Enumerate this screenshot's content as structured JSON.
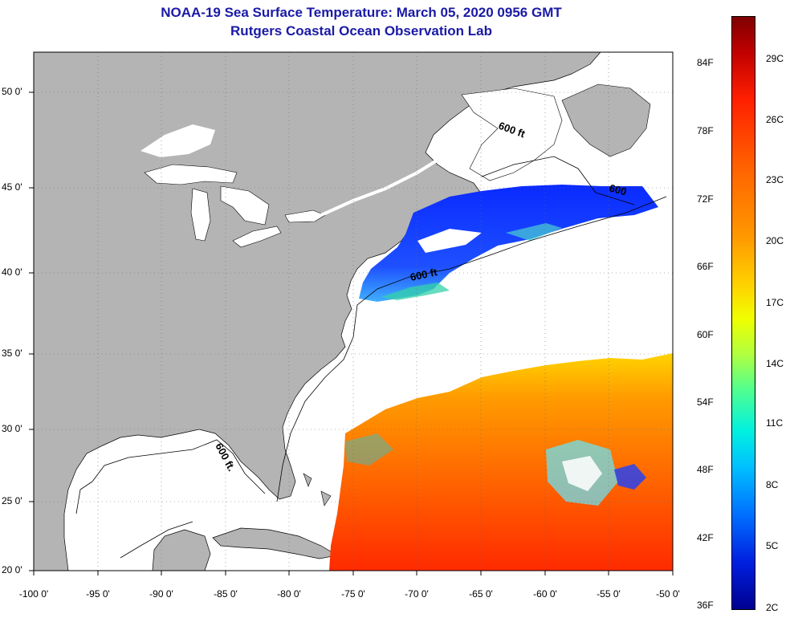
{
  "title": {
    "line1": "NOAA-19 Sea Surface Temperature:  March 05, 2020 0956 GMT",
    "line2": "Rutgers Coastal Ocean Observation Lab"
  },
  "map": {
    "lat_labels": [
      "50 0'",
      "45 0'",
      "40 0'",
      "35 0'",
      "30 0'",
      "25 0'",
      "20 0'"
    ],
    "lon_labels": [
      "-100 0'",
      "-95 0'",
      "-90 0'",
      "-85 0'",
      "-80 0'",
      "-75 0'",
      "-70 0'",
      "-65 0'",
      "-60 0'",
      "-55 0'",
      "-50 0'"
    ],
    "isobath_labels": [
      "600 ft",
      "600",
      "600 ft",
      "600 ft."
    ],
    "colors": {
      "land": "#b4b4b4",
      "water": "#ffffff",
      "grid": "#6a6a6a"
    }
  },
  "colorbar": {
    "fahrenheit": [
      "84F",
      "78F",
      "72F",
      "66F",
      "60F",
      "54F",
      "48F",
      "42F",
      "36F"
    ],
    "celsius": [
      "29C",
      "26C",
      "23C",
      "20C",
      "17C",
      "14C",
      "11C",
      "8C",
      "5C",
      "2C"
    ]
  }
}
